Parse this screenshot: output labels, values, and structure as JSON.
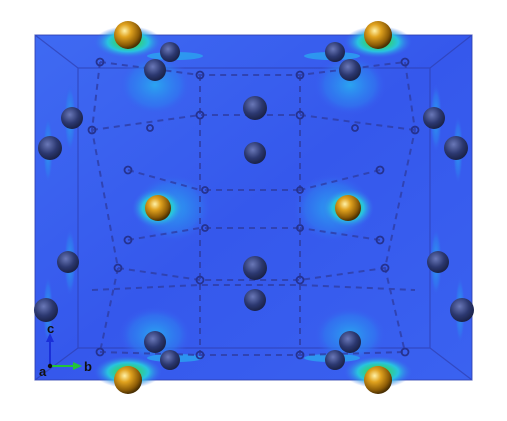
{
  "axes": {
    "a_label": "a",
    "b_label": "b",
    "c_label": "c",
    "a_color": "#111111",
    "b_color": "#22c43a",
    "c_color": "#1a2fd8"
  },
  "colors": {
    "background": "#ffffff",
    "density_field": "#3a5cf0",
    "density_edge": "#2b45d6",
    "cell_edge": "#3a47b8",
    "bond_dashes": "#2f3fa8",
    "gold_atom": "#c8860f",
    "dark_atom": "#2c3870",
    "isosurface_high": "#f2e33a",
    "isosurface_mid": "#2fd07a",
    "isosurface_low": "#28c3e0"
  }
}
